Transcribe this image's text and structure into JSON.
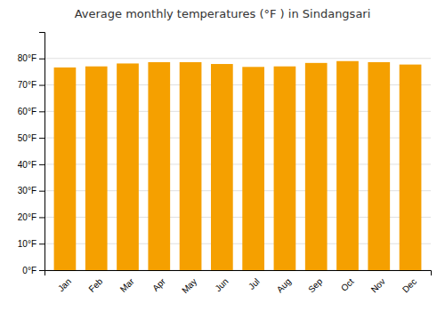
{
  "chart_data": {
    "type": "bar",
    "title": "Average monthly temperatures (°F ) in Sindangsari",
    "categories": [
      "Jan",
      "Feb",
      "Mar",
      "Apr",
      "May",
      "Jun",
      "Jul",
      "Aug",
      "Sep",
      "Oct",
      "Nov",
      "Dec"
    ],
    "values": [
      76.6,
      77.0,
      78.1,
      78.6,
      78.6,
      77.9,
      76.8,
      77.0,
      78.3,
      79.0,
      78.6,
      77.7
    ],
    "color": "#F5A000",
    "ylim": [
      0,
      90
    ],
    "yticks": [
      {
        "value": 0,
        "label": "0°F"
      },
      {
        "value": 10,
        "label": "10°F"
      },
      {
        "value": 20,
        "label": "20°F"
      },
      {
        "value": 30,
        "label": "30°F"
      },
      {
        "value": 40,
        "label": "40°F"
      },
      {
        "value": 50,
        "label": "50°F"
      },
      {
        "value": 60,
        "label": "60°F"
      },
      {
        "value": 70,
        "label": "70°F"
      },
      {
        "value": 80,
        "label": "80°F"
      }
    ],
    "grid": true
  }
}
